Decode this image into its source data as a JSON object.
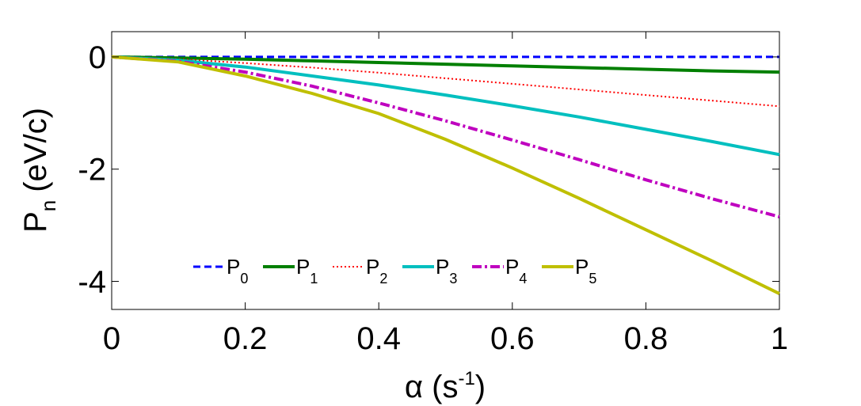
{
  "chart_data": {
    "type": "line",
    "title": "",
    "xlabel": {
      "symbol": "α",
      "unit_base": "(s",
      "unit_sup": "-1",
      "unit_close": ")"
    },
    "ylabel": {
      "base": "P",
      "sub": "n",
      "unit": "(eV/c)"
    },
    "xlim": [
      0,
      1
    ],
    "ylim": [
      -4.5,
      0.45
    ],
    "xticks": [
      0,
      0.2,
      0.4,
      0.6,
      0.8,
      1
    ],
    "xtick_labels": [
      "0",
      "0.2",
      "0.4",
      "0.6",
      "0.8",
      "1"
    ],
    "yticks": [
      0,
      -2,
      -4
    ],
    "ytick_labels": [
      "0",
      "-2",
      "-4"
    ],
    "grid": false,
    "legend_placement": "bottom-center",
    "x": [
      0,
      0.1,
      0.2,
      0.3,
      0.4,
      0.5,
      0.6,
      0.7,
      0.8,
      0.9,
      1.0
    ],
    "series": [
      {
        "name": "P",
        "sub": "0",
        "color": "#0000ff",
        "dash": "9,5",
        "width": 3,
        "values": [
          0,
          0,
          0,
          0,
          0,
          0,
          0,
          0,
          0,
          0,
          0
        ]
      },
      {
        "name": "P",
        "sub": "1",
        "color": "#007f00",
        "dash": "",
        "width": 4,
        "values": [
          0,
          -0.02,
          -0.04,
          -0.07,
          -0.1,
          -0.13,
          -0.16,
          -0.19,
          -0.22,
          -0.25,
          -0.27
        ]
      },
      {
        "name": "P",
        "sub": "2",
        "color": "#ff0000",
        "dash": "2,3",
        "width": 2,
        "values": [
          0,
          -0.04,
          -0.11,
          -0.19,
          -0.28,
          -0.38,
          -0.48,
          -0.58,
          -0.68,
          -0.78,
          -0.88
        ]
      },
      {
        "name": "P",
        "sub": "3",
        "color": "#00bfbf",
        "dash": "",
        "width": 4,
        "values": [
          0,
          -0.06,
          -0.18,
          -0.34,
          -0.5,
          -0.68,
          -0.87,
          -1.07,
          -1.29,
          -1.51,
          -1.74
        ]
      },
      {
        "name": "P",
        "sub": "4",
        "color": "#bf00bf",
        "dash": "12,4,3,4",
        "width": 4,
        "values": [
          0,
          -0.08,
          -0.27,
          -0.52,
          -0.82,
          -1.14,
          -1.48,
          -1.83,
          -2.19,
          -2.53,
          -2.85
        ]
      },
      {
        "name": "P",
        "sub": "5",
        "color": "#bfbf00",
        "dash": "",
        "width": 4,
        "values": [
          0,
          -0.09,
          -0.34,
          -0.65,
          -1.01,
          -1.47,
          -1.98,
          -2.52,
          -3.08,
          -3.64,
          -4.22
        ]
      }
    ]
  }
}
